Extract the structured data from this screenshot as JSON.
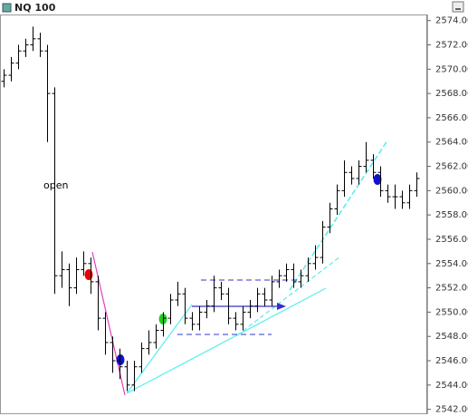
{
  "chart_data": {
    "type": "ohlc",
    "title": "NQ 100",
    "annotation": "open",
    "color": "#000000",
    "open": [
      2569,
      2569.5,
      2570.5,
      2571.5,
      2572,
      2572.5,
      2571.5,
      2568,
      2553,
      2553.5,
      2552,
      2553.5,
      2554,
      2552.5,
      2549.5,
      2547.5,
      2546,
      2545.5,
      2544,
      2545.5,
      2547,
      2547.5,
      2548.5,
      2549.5,
      2551,
      2551.5,
      2549.5,
      2549,
      2550,
      2550.5,
      2552,
      2551.5,
      2549.5,
      2549,
      2550,
      2550.5,
      2551.5,
      2551,
      2552.5,
      2553,
      2553.5,
      2552.5,
      2553,
      2554,
      2554.5,
      2557,
      2558.5,
      2560,
      2561.5,
      2561,
      2562,
      2562.5,
      2561.5,
      2560,
      2559.5,
      2559.5,
      2559,
      2560
    ],
    "high": [
      2570,
      2571,
      2572,
      2572.5,
      2573.5,
      2573,
      2572,
      2568.5,
      2555,
      2554,
      2554.5,
      2555,
      2554.5,
      2553,
      2550,
      2548,
      2547,
      2546,
      2546,
      2547.5,
      2548.5,
      2549,
      2550,
      2551.5,
      2552.5,
      2552,
      2550,
      2550.5,
      2551,
      2553,
      2552.5,
      2552,
      2550,
      2550.5,
      2551,
      2552,
      2552,
      2553,
      2553.5,
      2554,
      2554,
      2553.5,
      2554.5,
      2555.5,
      2557.5,
      2559,
      2560.5,
      2562.5,
      2562,
      2562.5,
      2564,
      2563,
      2562,
      2560.5,
      2560.5,
      2560,
      2560.5,
      2561.5
    ],
    "low": [
      2568.5,
      2569,
      2570,
      2571,
      2571.5,
      2571,
      2564,
      2551.5,
      2552,
      2550.5,
      2551.5,
      2553,
      2551.5,
      2548.5,
      2546.5,
      2545,
      2544.5,
      2543.5,
      2543.5,
      2545,
      2546.5,
      2547,
      2548,
      2549,
      2550.5,
      2549,
      2548.5,
      2548.5,
      2549.5,
      2550,
      2551,
      2549,
      2548.5,
      2548.5,
      2549.5,
      2550,
      2550.5,
      2550.5,
      2552,
      2552.5,
      2552,
      2552,
      2552.5,
      2553.5,
      2554,
      2556.5,
      2558,
      2559.5,
      2560.5,
      2560.5,
      2561.5,
      2561,
      2559.5,
      2559,
      2558.5,
      2558.5,
      2558.5,
      2559.5
    ],
    "close": [
      2569.5,
      2570.5,
      2571.5,
      2572,
      2572.5,
      2571.5,
      2568,
      2553,
      2553.5,
      2552,
      2553.5,
      2554,
      2552.5,
      2549.5,
      2547.5,
      2546,
      2545.5,
      2544,
      2545.5,
      2547,
      2547.5,
      2548.5,
      2549.5,
      2551,
      2551.5,
      2549.5,
      2549,
      2550,
      2550.5,
      2552,
      2551.5,
      2549.5,
      2549,
      2550,
      2550.5,
      2551.5,
      2551,
      2552.5,
      2553,
      2553.5,
      2552.5,
      2553,
      2554,
      2554.5,
      2557,
      2558.5,
      2560,
      2561.5,
      2561,
      2562,
      2562.5,
      2561.5,
      2560,
      2559.5,
      2559.5,
      2559,
      2560,
      2561
    ],
    "ylim": [
      2541.6,
      2574.5
    ],
    "yticks": [
      {
        "value": 2542,
        "label": "2542.00"
      },
      {
        "value": 2544,
        "label": "2544.00"
      },
      {
        "value": 2546,
        "label": "2546.00"
      },
      {
        "value": 2548,
        "label": "2548.00"
      },
      {
        "value": 2550,
        "label": "2550.00"
      },
      {
        "value": 2552,
        "label": "2552.00"
      },
      {
        "value": 2554,
        "label": "2554.00"
      },
      {
        "value": 2556,
        "label": "2556.00"
      },
      {
        "value": 2558,
        "label": "2558.00"
      },
      {
        "value": 2560,
        "label": "2560.00"
      },
      {
        "value": 2562,
        "label": "2562.00"
      },
      {
        "value": 2564,
        "label": "2564.00"
      },
      {
        "value": 2566,
        "label": "2566.00"
      },
      {
        "value": 2568,
        "label": "2568.00"
      },
      {
        "value": 2570,
        "label": "2570.00"
      },
      {
        "value": 2572,
        "label": "2572.00"
      },
      {
        "value": 2574,
        "label": "2574.00"
      }
    ],
    "grid": false
  }
}
